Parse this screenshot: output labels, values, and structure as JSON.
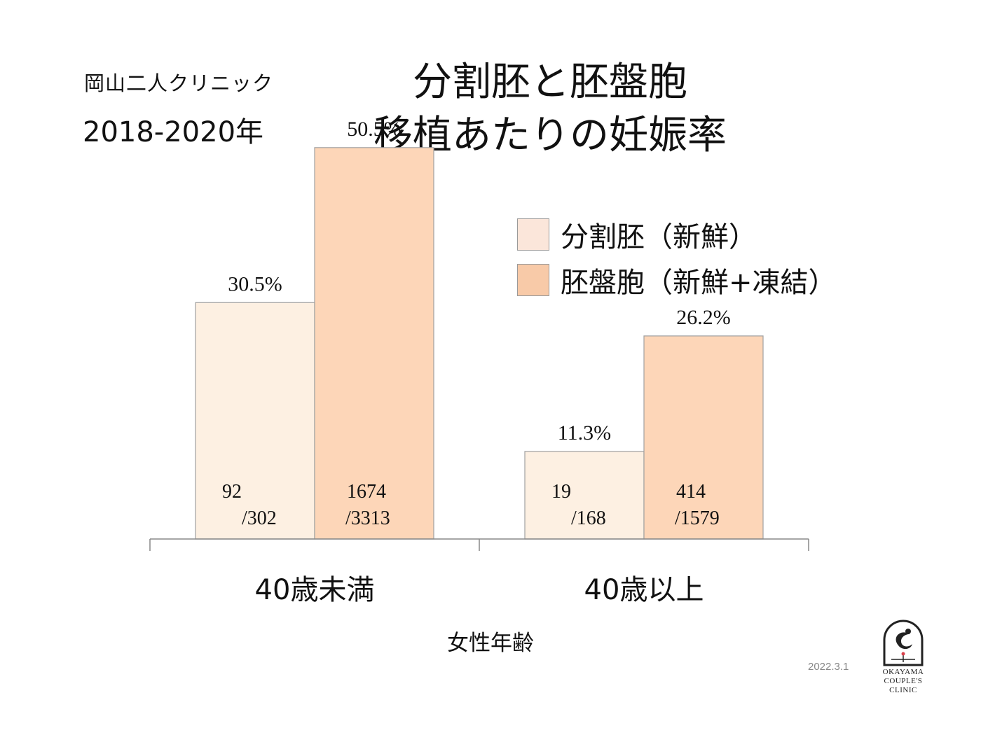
{
  "header": {
    "clinic_name": "岡山二人クリニック",
    "period": "2018-2020年",
    "title_line1": "分割胚と胚盤胞",
    "title_line2": "移植あたりの妊娠率"
  },
  "footer": {
    "date": "2022.3.1",
    "logo_text": [
      "OKAYAMA",
      "COUPLE'S",
      "CLINIC"
    ]
  },
  "colors": {
    "cleavage": "#fdf0e2",
    "blastocyst": "#fdd6b8",
    "legend_cleavage": "#fbe6da",
    "legend_blastocyst": "#f8caa8",
    "border": "#a0a0a0",
    "logo_accent": "#d9404a"
  },
  "chart_data": {
    "type": "bar",
    "title": "分割胚と胚盤胞 移植あたりの妊娠率",
    "xlabel": "女性年齢",
    "ylabel": "",
    "categories": [
      "40歳未満",
      "40歳以上"
    ],
    "ylim": [
      0,
      55
    ],
    "grid": false,
    "legend_position": "top-right",
    "series": [
      {
        "name": "分割胚（新鮮）",
        "values": [
          30.5,
          11.3
        ],
        "value_labels": [
          "30.5%",
          "11.3%"
        ],
        "count_top": [
          "92",
          "19"
        ],
        "count_bottom": [
          "/302",
          "/168"
        ]
      },
      {
        "name": "胚盤胞（新鮮+凍結）",
        "values": [
          50.5,
          26.2
        ],
        "value_labels": [
          "50.5%",
          "26.2%"
        ],
        "count_top": [
          "1674",
          "414"
        ],
        "count_bottom": [
          "/3313",
          "/1579"
        ]
      }
    ]
  }
}
